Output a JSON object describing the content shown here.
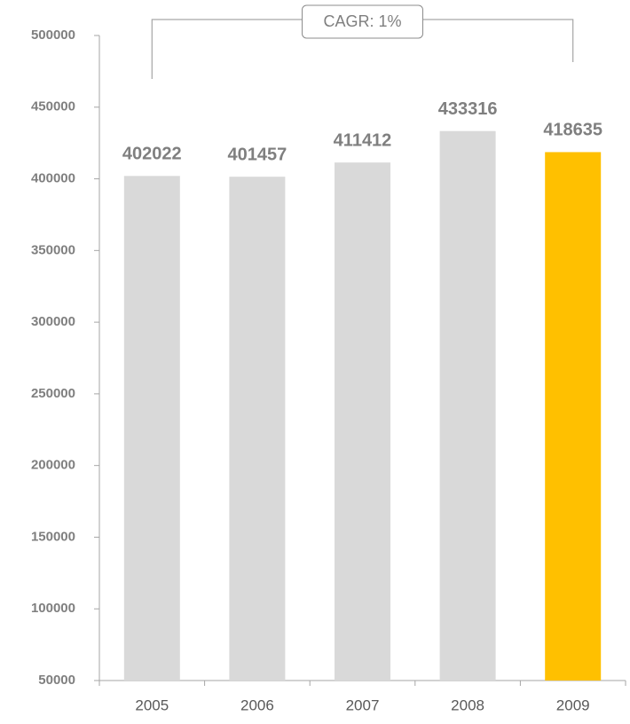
{
  "chart_data": {
    "type": "bar",
    "categories": [
      "2005",
      "2006",
      "2007",
      "2008",
      "2009"
    ],
    "values": [
      402022,
      401457,
      411412,
      433316,
      418635
    ],
    "colors": [
      "#d9d9d9",
      "#d9d9d9",
      "#d9d9d9",
      "#d9d9d9",
      "#ffc000"
    ],
    "ylim": [
      50000,
      500000
    ],
    "yticks": [
      50000,
      100000,
      150000,
      200000,
      250000,
      300000,
      350000,
      400000,
      450000,
      500000
    ],
    "annotation": "CAGR: 1%",
    "data_labels": true,
    "grid": false
  }
}
